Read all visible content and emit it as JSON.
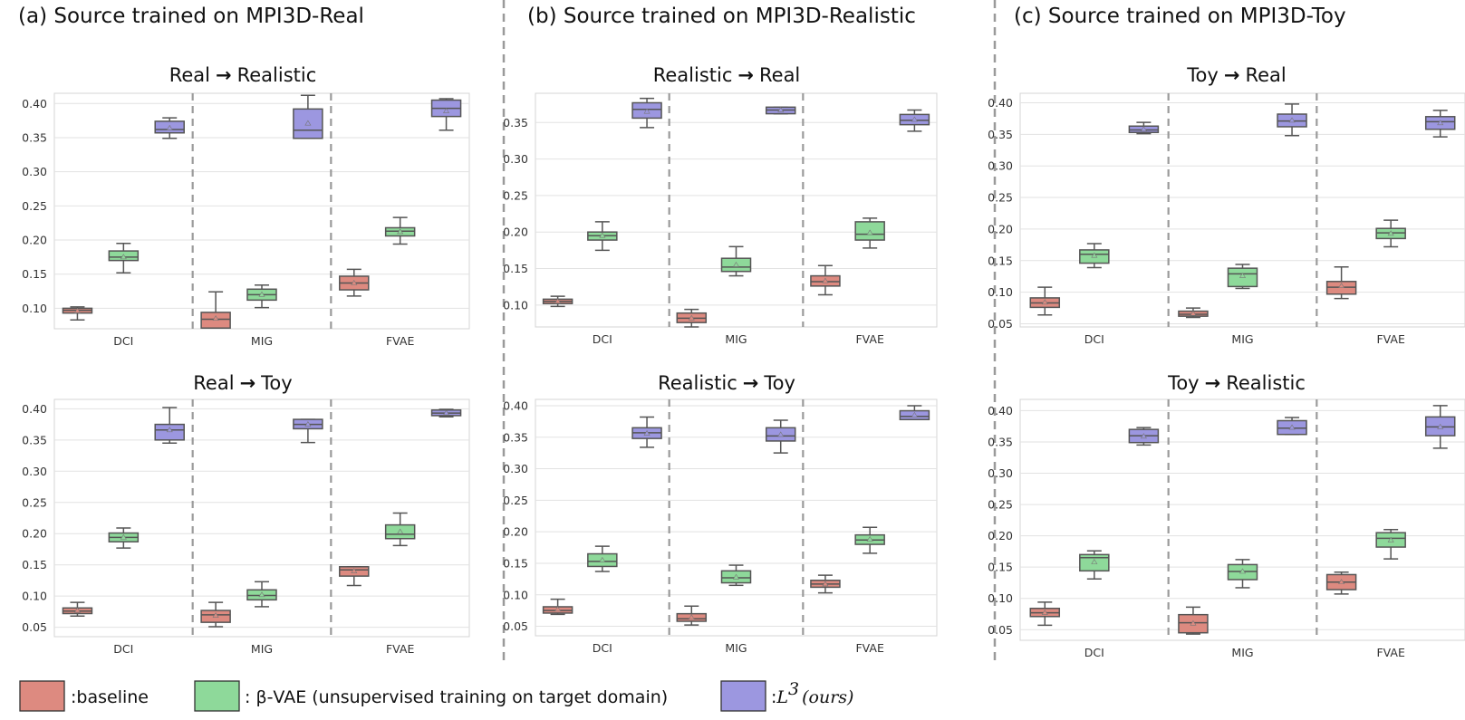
{
  "column_titles": [
    "(a) Source trained on MPI3D-Real",
    "(b) Source trained on MPI3D-Realistic",
    "(c) Source trained on MPI3D-Toy"
  ],
  "colors": {
    "baseline": "#dd8a80",
    "vae": "#8ed99a",
    "ours": "#9c97e0",
    "edge": "#555555",
    "grid": "#e2e2e2",
    "divider": "#9a9a9a"
  },
  "legend": {
    "baseline": ":baseline",
    "vae": ": β-VAE (unsupervised training on target domain)",
    "ours_prefix": ":",
    "ours_math": "L",
    "ours_sup": "3",
    "ours_suffix": "(ours)"
  },
  "chart_data": [
    {
      "type": "boxplot",
      "title": "Real → Realistic",
      "title_from": "Real",
      "title_to": "Realistic",
      "categories": [
        "DCI",
        "MIG",
        "FVAE"
      ],
      "ylim": [
        0.07,
        0.415
      ],
      "yticks": [
        0.1,
        0.15,
        0.2,
        0.25,
        0.3,
        0.35,
        0.4
      ],
      "ytick_labels": [
        "0.10",
        "0.15",
        "0.20",
        "0.25",
        "0.30",
        "0.35",
        "0.40"
      ],
      "series": [
        {
          "name": "baseline",
          "boxes": [
            {
              "min": 0.083,
              "q1": 0.093,
              "median": 0.097,
              "q3": 0.1,
              "max": 0.102,
              "mean": 0.096
            },
            {
              "min": 0.071,
              "q1": 0.071,
              "median": 0.084,
              "q3": 0.094,
              "max": 0.124,
              "mean": 0.085
            },
            {
              "min": 0.118,
              "q1": 0.127,
              "median": 0.137,
              "q3": 0.147,
              "max": 0.157,
              "mean": 0.137
            }
          ]
        },
        {
          "name": "vae",
          "boxes": [
            {
              "min": 0.152,
              "q1": 0.17,
              "median": 0.175,
              "q3": 0.184,
              "max": 0.195,
              "mean": 0.175
            },
            {
              "min": 0.101,
              "q1": 0.112,
              "median": 0.12,
              "q3": 0.128,
              "max": 0.134,
              "mean": 0.12
            },
            {
              "min": 0.194,
              "q1": 0.206,
              "median": 0.213,
              "q3": 0.218,
              "max": 0.233,
              "mean": 0.212
            }
          ]
        },
        {
          "name": "ours",
          "boxes": [
            {
              "min": 0.349,
              "q1": 0.357,
              "median": 0.362,
              "q3": 0.374,
              "max": 0.379,
              "mean": 0.364
            },
            {
              "min": 0.349,
              "q1": 0.349,
              "median": 0.361,
              "q3": 0.392,
              "max": 0.412,
              "mean": 0.371
            },
            {
              "min": 0.361,
              "q1": 0.381,
              "median": 0.393,
              "q3": 0.405,
              "max": 0.407,
              "mean": 0.389
            }
          ]
        }
      ]
    },
    {
      "type": "boxplot",
      "title": "Realistic → Real",
      "title_from": "Realistic",
      "title_to": "Real",
      "categories": [
        "DCI",
        "MIG",
        "FVAE"
      ],
      "ylim": [
        0.07,
        0.39
      ],
      "yticks": [
        0.1,
        0.15,
        0.2,
        0.25,
        0.3,
        0.35
      ],
      "ytick_labels": [
        "0.10",
        "0.15",
        "0.20",
        "0.25",
        "0.30",
        "0.35"
      ],
      "series": [
        {
          "name": "baseline",
          "boxes": [
            {
              "min": 0.098,
              "q1": 0.102,
              "median": 0.105,
              "q3": 0.108,
              "max": 0.112,
              "mean": 0.105
            },
            {
              "min": 0.07,
              "q1": 0.076,
              "median": 0.082,
              "q3": 0.089,
              "max": 0.094,
              "mean": 0.082
            },
            {
              "min": 0.114,
              "q1": 0.126,
              "median": 0.132,
              "q3": 0.14,
              "max": 0.154,
              "mean": 0.133
            }
          ]
        },
        {
          "name": "vae",
          "boxes": [
            {
              "min": 0.175,
              "q1": 0.189,
              "median": 0.195,
              "q3": 0.2,
              "max": 0.214,
              "mean": 0.195
            },
            {
              "min": 0.14,
              "q1": 0.146,
              "median": 0.152,
              "q3": 0.164,
              "max": 0.18,
              "mean": 0.155
            },
            {
              "min": 0.178,
              "q1": 0.189,
              "median": 0.197,
              "q3": 0.214,
              "max": 0.219,
              "mean": 0.199
            }
          ]
        },
        {
          "name": "ours",
          "boxes": [
            {
              "min": 0.343,
              "q1": 0.356,
              "median": 0.368,
              "q3": 0.377,
              "max": 0.383,
              "mean": 0.365
            },
            {
              "min": 0.362,
              "q1": 0.362,
              "median": 0.367,
              "q3": 0.371,
              "max": 0.371,
              "mean": 0.367
            },
            {
              "min": 0.338,
              "q1": 0.347,
              "median": 0.353,
              "q3": 0.361,
              "max": 0.367,
              "mean": 0.354
            }
          ]
        }
      ]
    },
    {
      "type": "boxplot",
      "title": "Toy → Real",
      "title_from": "Toy",
      "title_to": "Real",
      "categories": [
        "DCI",
        "MIG",
        "FVAE"
      ],
      "ylim": [
        0.045,
        0.415
      ],
      "yticks": [
        0.05,
        0.1,
        0.15,
        0.2,
        0.25,
        0.3,
        0.35,
        0.4
      ],
      "ytick_labels": [
        "0.05",
        "0.10",
        "0.15",
        "0.20",
        "0.25",
        "0.30",
        "0.35",
        "0.40"
      ],
      "series": [
        {
          "name": "baseline",
          "boxes": [
            {
              "min": 0.064,
              "q1": 0.076,
              "median": 0.083,
              "q3": 0.091,
              "max": 0.108,
              "mean": 0.084
            },
            {
              "min": 0.06,
              "q1": 0.062,
              "median": 0.065,
              "q3": 0.07,
              "max": 0.075,
              "mean": 0.066
            },
            {
              "min": 0.09,
              "q1": 0.097,
              "median": 0.108,
              "q3": 0.117,
              "max": 0.14,
              "mean": 0.11
            }
          ]
        },
        {
          "name": "vae",
          "boxes": [
            {
              "min": 0.139,
              "q1": 0.146,
              "median": 0.16,
              "q3": 0.167,
              "max": 0.177,
              "mean": 0.158
            },
            {
              "min": 0.106,
              "q1": 0.109,
              "median": 0.129,
              "q3": 0.138,
              "max": 0.144,
              "mean": 0.126
            },
            {
              "min": 0.172,
              "q1": 0.185,
              "median": 0.194,
              "q3": 0.201,
              "max": 0.214,
              "mean": 0.193
            }
          ]
        },
        {
          "name": "ours",
          "boxes": [
            {
              "min": 0.351,
              "q1": 0.353,
              "median": 0.357,
              "q3": 0.363,
              "max": 0.369,
              "mean": 0.358
            },
            {
              "min": 0.348,
              "q1": 0.362,
              "median": 0.371,
              "q3": 0.382,
              "max": 0.398,
              "mean": 0.372
            },
            {
              "min": 0.346,
              "q1": 0.358,
              "median": 0.37,
              "q3": 0.378,
              "max": 0.388,
              "mean": 0.368
            }
          ]
        }
      ]
    },
    {
      "type": "boxplot",
      "title": "Real → Toy",
      "title_from": "Real",
      "title_to": "Toy",
      "categories": [
        "DCI",
        "MIG",
        "FVAE"
      ],
      "ylim": [
        0.035,
        0.415
      ],
      "yticks": [
        0.05,
        0.1,
        0.15,
        0.2,
        0.25,
        0.3,
        0.35,
        0.4
      ],
      "ytick_labels": [
        "0.05",
        "0.10",
        "0.15",
        "0.20",
        "0.25",
        "0.30",
        "0.35",
        "0.40"
      ],
      "series": [
        {
          "name": "baseline",
          "boxes": [
            {
              "min": 0.068,
              "q1": 0.072,
              "median": 0.076,
              "q3": 0.081,
              "max": 0.09,
              "mean": 0.077
            },
            {
              "min": 0.051,
              "q1": 0.058,
              "median": 0.07,
              "q3": 0.077,
              "max": 0.09,
              "mean": 0.069
            },
            {
              "min": 0.117,
              "q1": 0.132,
              "median": 0.142,
              "q3": 0.147,
              "max": 0.147,
              "mean": 0.14
            }
          ]
        },
        {
          "name": "vae",
          "boxes": [
            {
              "min": 0.177,
              "q1": 0.187,
              "median": 0.194,
              "q3": 0.201,
              "max": 0.209,
              "mean": 0.194
            },
            {
              "min": 0.083,
              "q1": 0.094,
              "median": 0.101,
              "q3": 0.11,
              "max": 0.123,
              "mean": 0.102
            },
            {
              "min": 0.181,
              "q1": 0.192,
              "median": 0.199,
              "q3": 0.214,
              "max": 0.233,
              "mean": 0.203
            }
          ]
        },
        {
          "name": "ours",
          "boxes": [
            {
              "min": 0.345,
              "q1": 0.35,
              "median": 0.366,
              "q3": 0.375,
              "max": 0.402,
              "mean": 0.366
            },
            {
              "min": 0.346,
              "q1": 0.368,
              "median": 0.375,
              "q3": 0.383,
              "max": 0.383,
              "mean": 0.375
            },
            {
              "min": 0.387,
              "q1": 0.389,
              "median": 0.393,
              "q3": 0.398,
              "max": 0.399,
              "mean": 0.393
            }
          ]
        }
      ]
    },
    {
      "type": "boxplot",
      "title": "Realistic → Toy",
      "title_from": "Realistic",
      "title_to": "Toy",
      "categories": [
        "DCI",
        "MIG",
        "FVAE"
      ],
      "ylim": [
        0.035,
        0.41
      ],
      "yticks": [
        0.05,
        0.1,
        0.15,
        0.2,
        0.25,
        0.3,
        0.35,
        0.4
      ],
      "ytick_labels": [
        "0.05",
        "0.10",
        "0.15",
        "0.20",
        "0.25",
        "0.30",
        "0.35",
        "0.40"
      ],
      "series": [
        {
          "name": "baseline",
          "boxes": [
            {
              "min": 0.069,
              "q1": 0.071,
              "median": 0.075,
              "q3": 0.081,
              "max": 0.093,
              "mean": 0.077
            },
            {
              "min": 0.052,
              "q1": 0.058,
              "median": 0.062,
              "q3": 0.07,
              "max": 0.082,
              "mean": 0.064
            },
            {
              "min": 0.103,
              "q1": 0.112,
              "median": 0.117,
              "q3": 0.123,
              "max": 0.131,
              "mean": 0.117
            }
          ]
        },
        {
          "name": "vae",
          "boxes": [
            {
              "min": 0.137,
              "q1": 0.145,
              "median": 0.153,
              "q3": 0.165,
              "max": 0.177,
              "mean": 0.155
            },
            {
              "min": 0.115,
              "q1": 0.119,
              "median": 0.127,
              "q3": 0.138,
              "max": 0.147,
              "mean": 0.128
            },
            {
              "min": 0.166,
              "q1": 0.18,
              "median": 0.187,
              "q3": 0.195,
              "max": 0.207,
              "mean": 0.188
            }
          ]
        },
        {
          "name": "ours",
          "boxes": [
            {
              "min": 0.334,
              "q1": 0.348,
              "median": 0.357,
              "q3": 0.365,
              "max": 0.382,
              "mean": 0.356
            },
            {
              "min": 0.325,
              "q1": 0.344,
              "median": 0.352,
              "q3": 0.365,
              "max": 0.377,
              "mean": 0.354
            },
            {
              "min": 0.378,
              "q1": 0.378,
              "median": 0.383,
              "q3": 0.392,
              "max": 0.4,
              "mean": 0.385
            }
          ]
        }
      ]
    },
    {
      "type": "boxplot",
      "title": "Toy → Realistic",
      "title_from": "Toy",
      "title_to": "Realistic",
      "categories": [
        "DCI",
        "MIG",
        "FVAE"
      ],
      "ylim": [
        0.033,
        0.418
      ],
      "yticks": [
        0.05,
        0.1,
        0.15,
        0.2,
        0.25,
        0.3,
        0.35,
        0.4
      ],
      "ytick_labels": [
        "0.05",
        "0.10",
        "0.15",
        "0.20",
        "0.25",
        "0.30",
        "0.35",
        "0.40"
      ],
      "series": [
        {
          "name": "baseline",
          "boxes": [
            {
              "min": 0.057,
              "q1": 0.071,
              "median": 0.077,
              "q3": 0.084,
              "max": 0.094,
              "mean": 0.077
            },
            {
              "min": 0.043,
              "q1": 0.045,
              "median": 0.061,
              "q3": 0.074,
              "max": 0.086,
              "mean": 0.06
            },
            {
              "min": 0.107,
              "q1": 0.114,
              "median": 0.126,
              "q3": 0.138,
              "max": 0.142,
              "mean": 0.126
            }
          ]
        },
        {
          "name": "vae",
          "boxes": [
            {
              "min": 0.131,
              "q1": 0.144,
              "median": 0.165,
              "q3": 0.17,
              "max": 0.176,
              "mean": 0.158
            },
            {
              "min": 0.117,
              "q1": 0.13,
              "median": 0.143,
              "q3": 0.154,
              "max": 0.162,
              "mean": 0.143
            },
            {
              "min": 0.163,
              "q1": 0.182,
              "median": 0.196,
              "q3": 0.205,
              "max": 0.21,
              "mean": 0.193
            }
          ]
        },
        {
          "name": "ours",
          "boxes": [
            {
              "min": 0.345,
              "q1": 0.349,
              "median": 0.36,
              "q3": 0.37,
              "max": 0.373,
              "mean": 0.359
            },
            {
              "min": 0.362,
              "q1": 0.362,
              "median": 0.372,
              "q3": 0.384,
              "max": 0.389,
              "mean": 0.373
            },
            {
              "min": 0.34,
              "q1": 0.36,
              "median": 0.374,
              "q3": 0.39,
              "max": 0.408,
              "mean": 0.374
            }
          ]
        }
      ]
    }
  ]
}
